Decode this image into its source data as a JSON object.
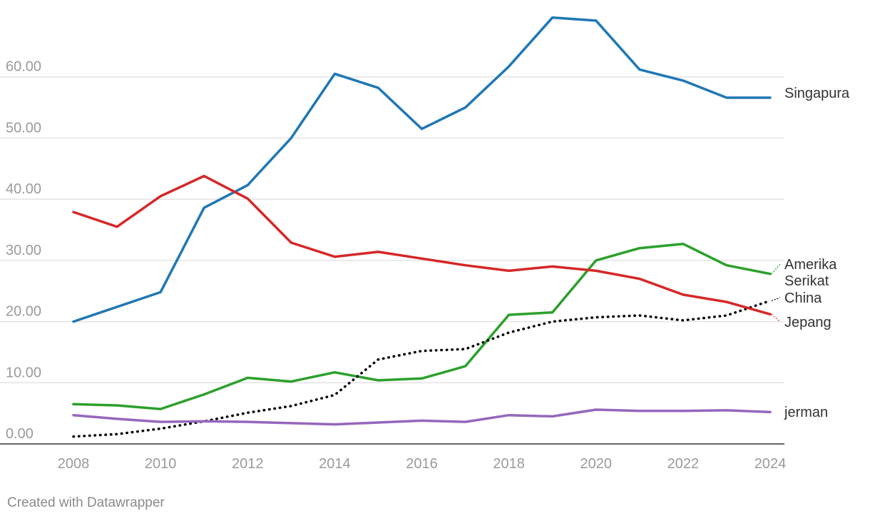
{
  "chart_data": {
    "type": "line",
    "x": [
      2008,
      2009,
      2010,
      2011,
      2012,
      2013,
      2014,
      2015,
      2016,
      2017,
      2018,
      2019,
      2020,
      2021,
      2022,
      2023,
      2024
    ],
    "x_ticks": [
      "2008",
      "2010",
      "2012",
      "2014",
      "2016",
      "2018",
      "2020",
      "2022",
      "2024"
    ],
    "y_ticks": [
      "0.00",
      "10.00",
      "20.00",
      "30.00",
      "40.00",
      "50.00",
      "60.00"
    ],
    "ylim": [
      0,
      70
    ],
    "grid": true,
    "legend": "direct labels at line ends (right)",
    "series": [
      {
        "name": "Singapura",
        "color": "#1f77b4",
        "style": "solid",
        "values": [
          20.0,
          22.4,
          24.8,
          38.6,
          42.3,
          50.0,
          60.5,
          58.2,
          51.5,
          55.0,
          61.7,
          69.7,
          69.2,
          61.2,
          59.4,
          56.6,
          56.6
        ]
      },
      {
        "name": "Amerika Serikat",
        "label_lines": [
          "Amerika",
          "Serikat"
        ],
        "color": "#2ca02c",
        "style": "solid",
        "values": [
          6.5,
          6.3,
          5.7,
          8.1,
          10.8,
          10.2,
          11.7,
          10.4,
          10.7,
          12.7,
          21.1,
          21.5,
          30.0,
          32.0,
          32.7,
          29.2,
          27.8
        ]
      },
      {
        "name": "China",
        "color": "#000000",
        "style": "dotted",
        "values": [
          1.2,
          1.6,
          2.5,
          3.7,
          5.1,
          6.2,
          8.0,
          13.8,
          15.2,
          15.5,
          18.2,
          20.0,
          20.7,
          21.0,
          20.2,
          21.0,
          23.4
        ]
      },
      {
        "name": "Jepang",
        "color": "#d62728",
        "style": "solid",
        "values": [
          37.9,
          35.5,
          40.5,
          43.8,
          40.1,
          32.9,
          30.6,
          31.4,
          30.3,
          29.2,
          28.3,
          29.0,
          28.3,
          27.0,
          24.4,
          23.2,
          21.2
        ]
      },
      {
        "name": "jerman",
        "color": "#9467bd",
        "style": "solid",
        "values": [
          4.7,
          4.1,
          3.6,
          3.7,
          3.6,
          3.4,
          3.2,
          3.5,
          3.8,
          3.6,
          4.7,
          4.5,
          5.6,
          5.4,
          5.4,
          5.5,
          5.2
        ]
      }
    ]
  },
  "footer": {
    "credit": "Created with Datawrapper"
  }
}
